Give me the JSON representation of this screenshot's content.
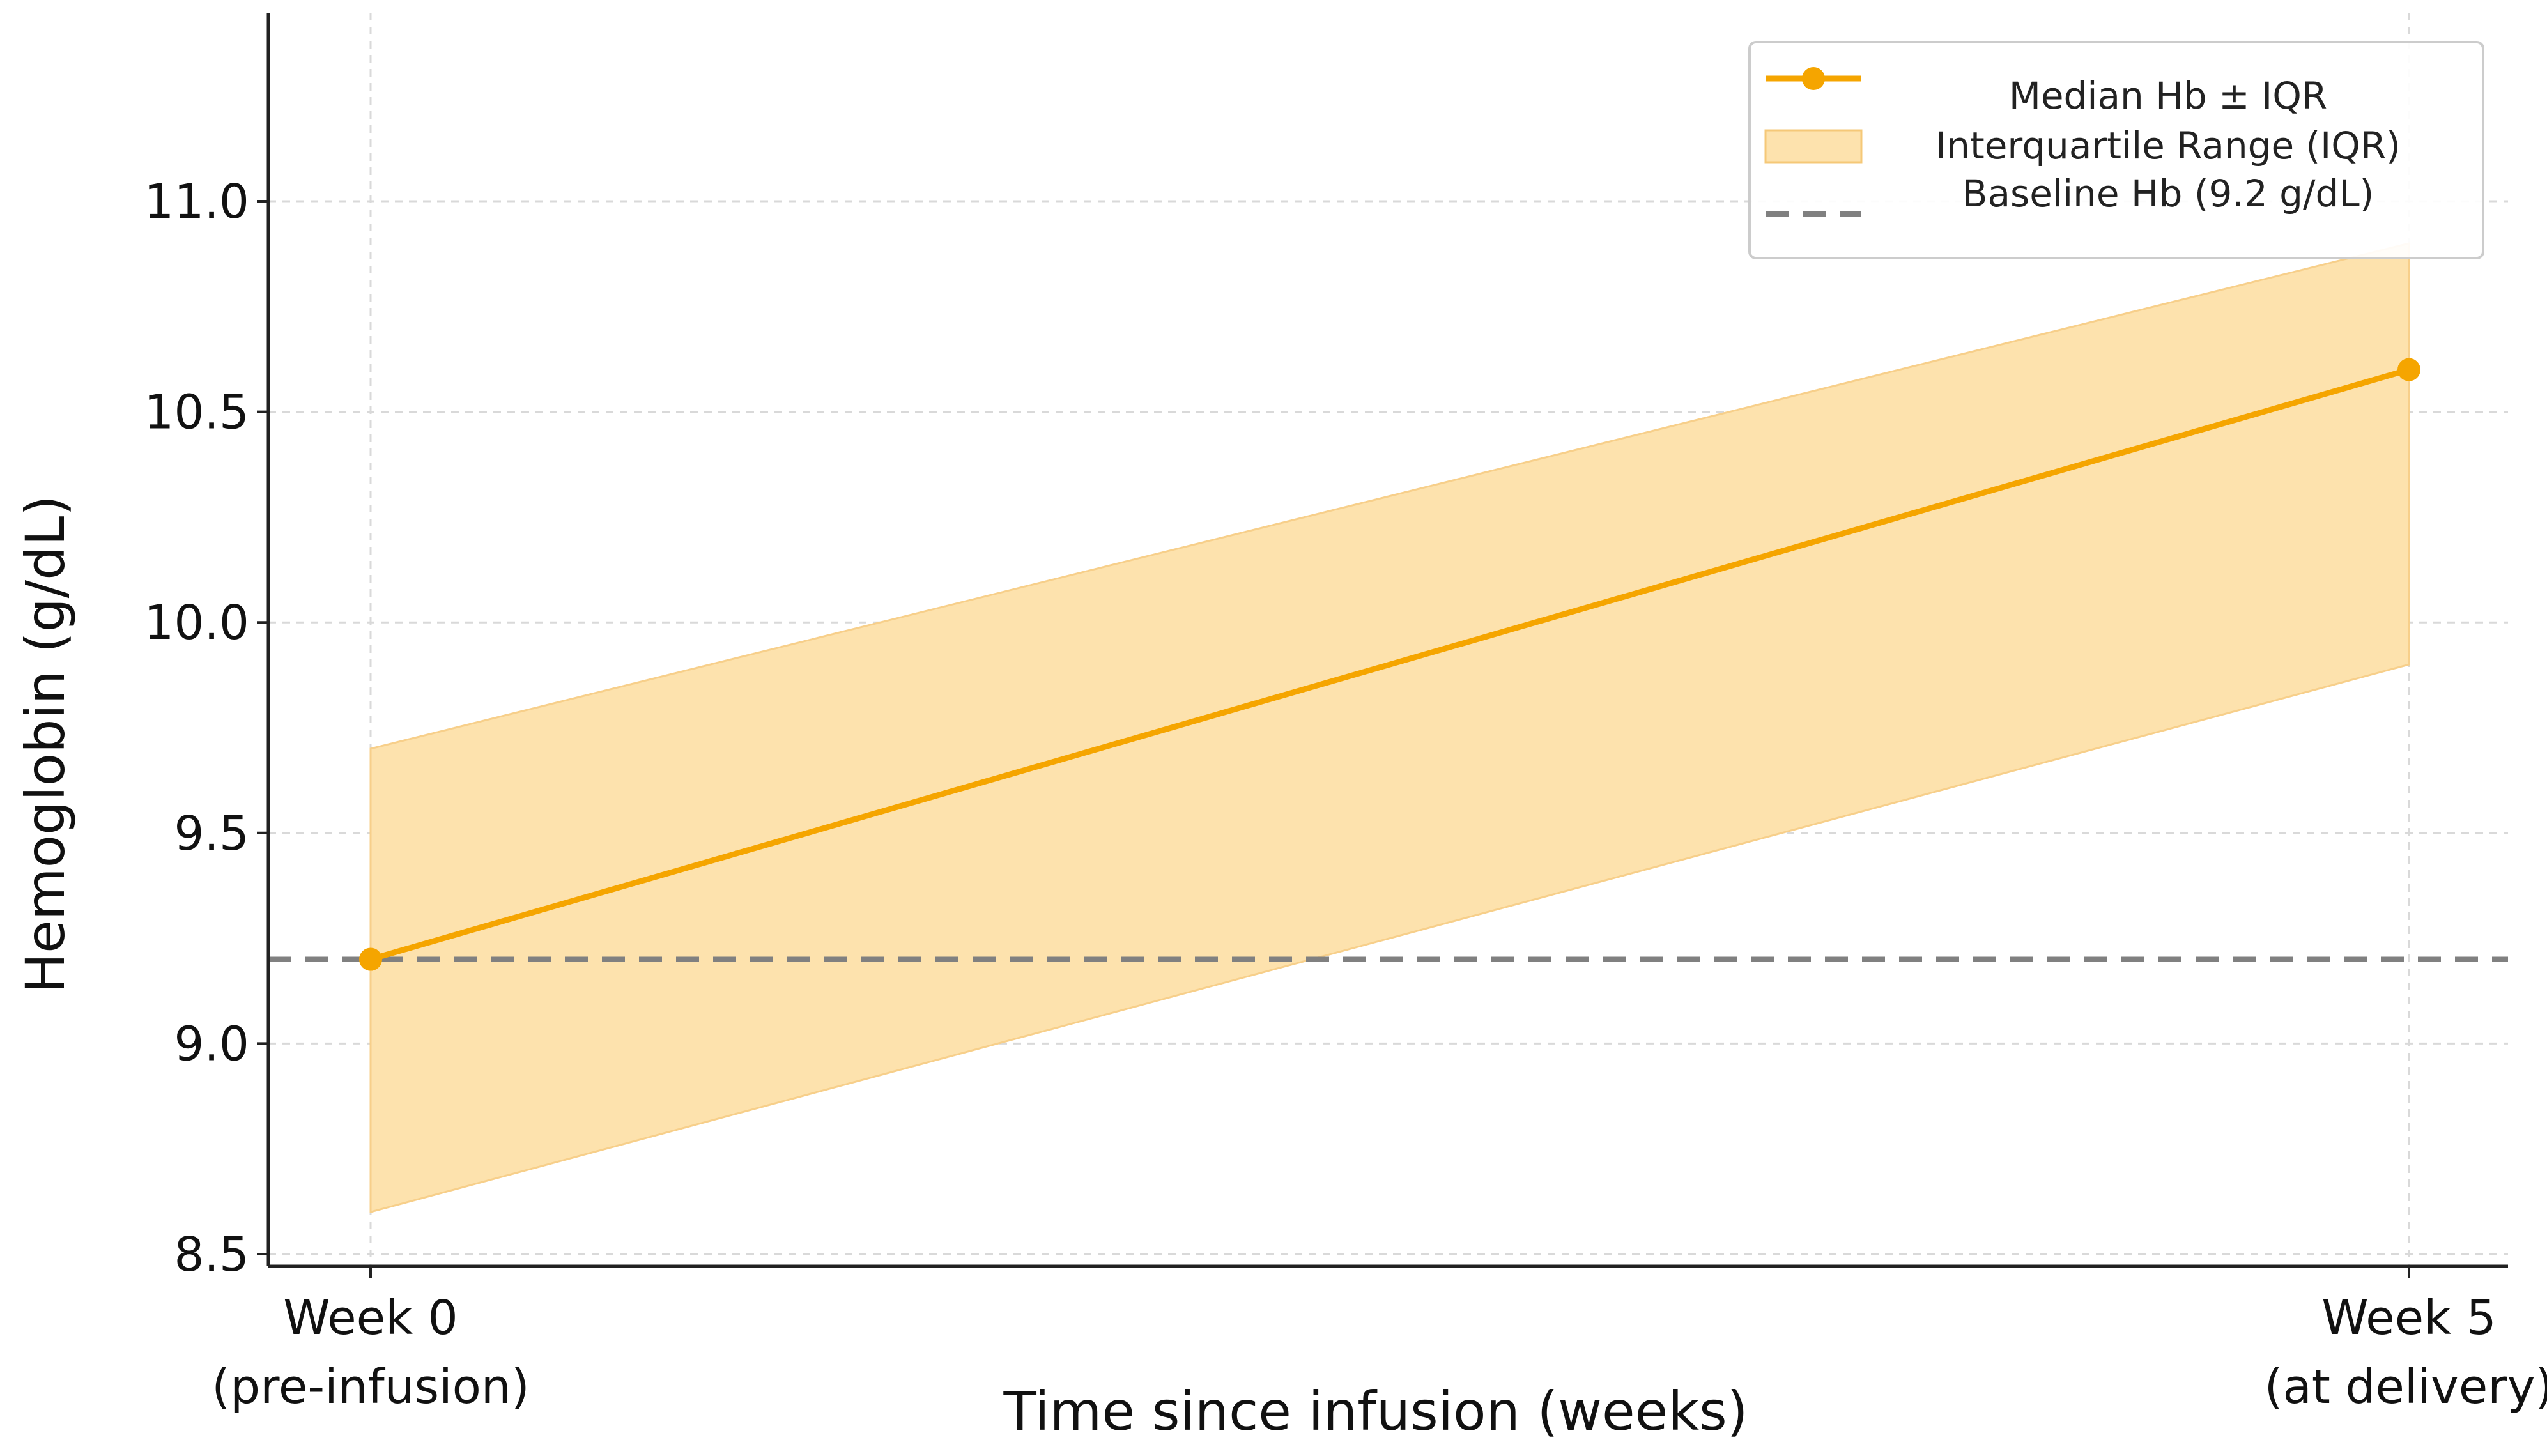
{
  "chart_data": {
    "type": "line",
    "title": "",
    "xlabel": "Time since infusion (weeks)",
    "ylabel": "Hemoglobin (g/dL)",
    "x": [
      0,
      5
    ],
    "x_tick_labels": [
      [
        "Week 0",
        "(pre-infusion)"
      ],
      [
        "Week 5",
        "(at delivery)"
      ]
    ],
    "ylim": [
      8.5,
      11.4
    ],
    "y_ticks": [
      8.5,
      9.0,
      9.5,
      10.0,
      10.5,
      11.0
    ],
    "y_tick_labels": [
      "8.5",
      "9.0",
      "9.5",
      "10.0",
      "10.5",
      "11.0"
    ],
    "grid": true,
    "series": [
      {
        "name": "Median Hb ± IQR",
        "kind": "line",
        "values": [
          9.2,
          10.6
        ],
        "color": "#f5a500"
      }
    ],
    "band": {
      "name": "Interquartile Range (IQR)",
      "lower": [
        8.6,
        9.9
      ],
      "upper": [
        9.7,
        10.9
      ],
      "color": "#fde2ad"
    },
    "reference_line": {
      "name": "Baseline Hb (9.2 g/dL)",
      "value": 9.2,
      "style": "dashed",
      "color": "#808080"
    },
    "legend_position": "top-right"
  }
}
